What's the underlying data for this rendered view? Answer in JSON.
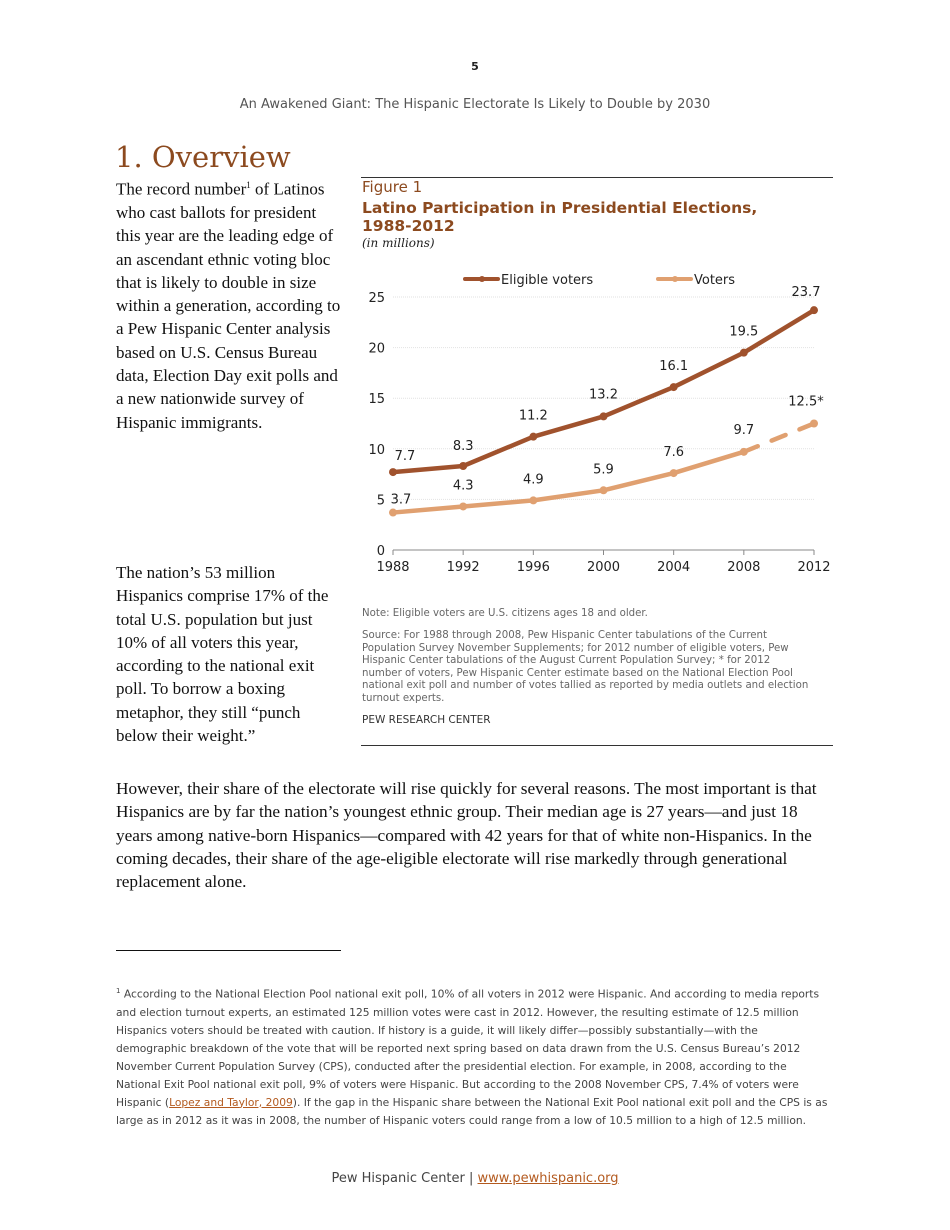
{
  "page_number": "5",
  "running_header": "An Awakened Giant: The Hispanic Electorate Is Likely to Double by 2030",
  "section_title": "1. Overview",
  "left_paragraphs": [
    {
      "before": "The record number",
      "sup": "1",
      "after": " of Latinos who cast ballots for president this year are the leading edge of an ascendant ethnic voting bloc that is likely to double in size within a generation, according to a Pew Hispanic Center analysis based on U.S. Census Bureau data, Election Day exit polls and a new nationwide survey of Hispanic immigrants."
    },
    {
      "text": "The nation’s 53 million Hispanics comprise 17% of the total U.S. population but just 10% of all voters this year, according to the national exit poll. To borrow a boxing metaphor, they still “punch below their weight.”"
    }
  ],
  "figure": {
    "label": "Figure 1",
    "title": "Latino Participation in Presidential Elections, 1988-2012",
    "unit": "(in millions)",
    "note": "Note: Eligible voters are U.S. citizens ages 18 and older.",
    "source": "Source: For 1988 through 2008, Pew Hispanic Center tabulations of the Current Population Survey November Supplements; for 2012 number of eligible voters, Pew Hispanic Center tabulations of the August Current Population Survey; * for 2012 number of voters, Pew Hispanic Center estimate based on the National Election Pool national exit poll and number of votes tallied as reported by media outlets and election turnout experts.",
    "brand": "PEW RESEARCH CENTER"
  },
  "chart_data": {
    "type": "line",
    "x": [
      1988,
      1992,
      1996,
      2000,
      2004,
      2008,
      2012
    ],
    "xticks": [
      "1988",
      "1992",
      "1996",
      "2000",
      "2004",
      "2008",
      "2012"
    ],
    "yticks": [
      "0",
      "5",
      "10",
      "15",
      "20",
      "25"
    ],
    "ylim": [
      0,
      25
    ],
    "grid": true,
    "legend_placement": "top",
    "series": [
      {
        "name": "Eligible voters",
        "color": "#a0522d",
        "values": [
          7.7,
          8.3,
          11.2,
          13.2,
          16.1,
          19.5,
          23.7
        ],
        "labels": [
          "7.7",
          "8.3",
          "11.2",
          "13.2",
          "16.1",
          "19.5",
          "23.7"
        ],
        "dashed_last_segment": false
      },
      {
        "name": "Voters",
        "color": "#e0a070",
        "values": [
          3.7,
          4.3,
          4.9,
          5.9,
          7.6,
          9.7,
          12.5
        ],
        "labels": [
          "3.7",
          "4.3",
          "4.9",
          "5.9",
          "7.6",
          "9.7",
          "12.5*"
        ],
        "dashed_last_segment": true
      }
    ]
  },
  "body_paragraph": "However, their share of the electorate will rise quickly for several reasons. The most important is that Hispanics are by far the nation’s youngest ethnic group. Their median age is 27 years—and just 18 years among native-born Hispanics—compared with 42 years for that of white non-Hispanics. In the coming decades, their share of the age-eligible electorate will rise markedly through generational replacement alone.",
  "footnote": {
    "marker": "1",
    "before": " According to the National Election Pool national exit poll, 10% of all voters in 2012 were Hispanic. And according to media reports and election turnout experts, an estimated 125 million votes were cast in 2012. However, the resulting estimate of 12.5 million Hispanics voters should be treated with caution. If history is a guide, it will likely differ—possibly substantially—with the demographic breakdown of the vote that will be reported next spring based on data drawn from the U.S. Census Bureau’s 2012 November Current Population Survey (CPS), conducted after the presidential election. For example, in 2008, according to the National Exit Pool national exit poll, 9% of voters were Hispanic. But according to the 2008 November CPS, 7.4% of voters were Hispanic (",
    "link": "Lopez and Taylor, 2009",
    "after": "). If the gap in the Hispanic share between the National Exit Pool national exit poll and the CPS is as large as in 2012 as it was in 2008, the number of Hispanic voters could range from a low of 10.5 million to a high of 12.5 million."
  },
  "footer": {
    "org": "Pew Hispanic Center | ",
    "link": "www.pewhispanic.org"
  }
}
